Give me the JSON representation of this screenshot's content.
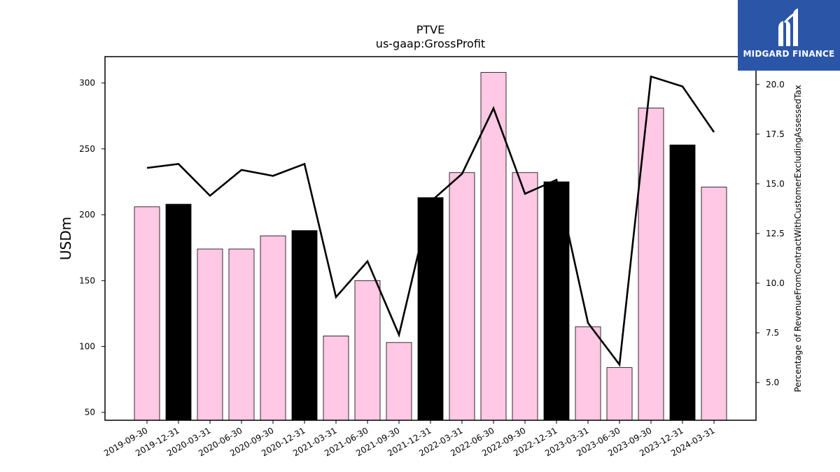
{
  "chart_data": {
    "type": "bar",
    "title": "PTVE",
    "subtitle": "us-gaap:GrossProfit",
    "ylabel": "USDm",
    "y2label": "Percentage of RevenueFromContractWithCustomerExcludingAssessedTax",
    "categories": [
      "2019-09-30",
      "2019-12-31",
      "2020-03-31",
      "2020-06-30",
      "2020-09-30",
      "2020-12-31",
      "2021-03-31",
      "2021-06-30",
      "2021-09-30",
      "2021-12-31",
      "2022-03-31",
      "2022-06-30",
      "2022-09-30",
      "2022-12-31",
      "2023-03-31",
      "2023-06-30",
      "2023-09-30",
      "2023-12-31",
      "2024-03-31"
    ],
    "values": [
      206,
      208,
      174,
      174,
      184,
      188,
      108,
      150,
      103,
      213,
      232,
      308,
      232,
      225,
      115,
      84,
      281,
      253,
      221
    ],
    "bar_colors": [
      "#ffc8e4",
      "#000000",
      "#ffc8e4",
      "#ffc8e4",
      "#ffc8e4",
      "#000000",
      "#ffc8e4",
      "#ffc8e4",
      "#ffc8e4",
      "#000000",
      "#ffc8e4",
      "#ffc8e4",
      "#ffc8e4",
      "#000000",
      "#ffc8e4",
      "#ffc8e4",
      "#ffc8e4",
      "#000000",
      "#ffc8e4"
    ],
    "line_values": [
      15.8,
      16.0,
      14.4,
      15.7,
      15.4,
      16.0,
      9.3,
      11.1,
      7.4,
      14.1,
      15.5,
      18.8,
      14.5,
      15.2,
      8.0,
      5.9,
      20.4,
      19.9,
      17.6
    ],
    "line_color": "#000000",
    "ylim": [
      44,
      320
    ],
    "y2lim": [
      3.1,
      21.4
    ],
    "yticks": [
      50,
      100,
      150,
      200,
      250,
      300
    ],
    "y2ticks": [
      5.0,
      7.5,
      10.0,
      12.5,
      15.0,
      17.5,
      20.0
    ],
    "y2tick_labels": [
      "5.0",
      "7.5",
      "10.0",
      "12.5",
      "15.0",
      "17.5",
      "20.0"
    ],
    "grid": false,
    "legend": "none"
  },
  "logo": {
    "text": "MIDGARD FINANCE",
    "color": "#2b56a8"
  }
}
